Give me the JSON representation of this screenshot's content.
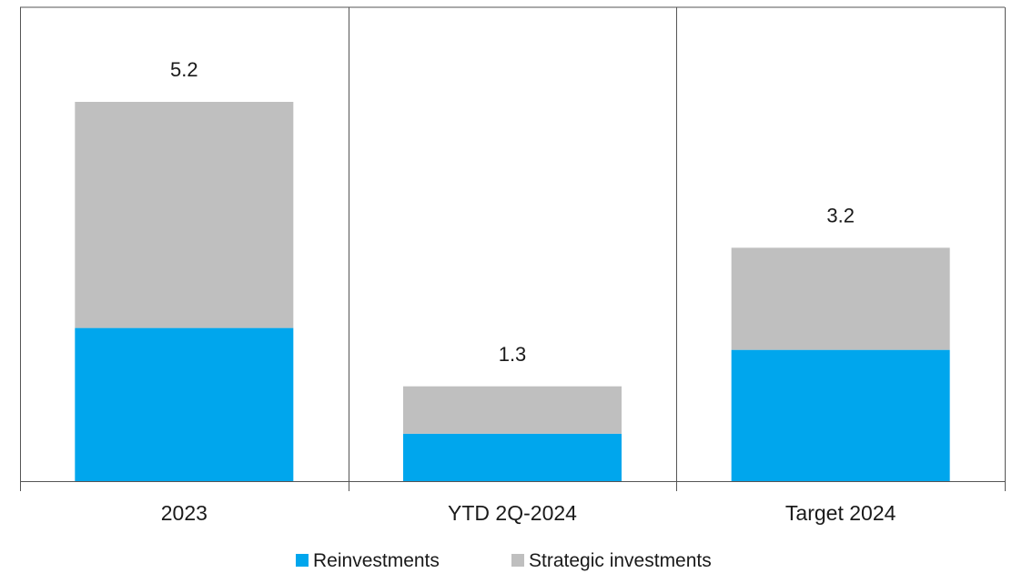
{
  "chart_data": {
    "type": "bar",
    "stacked": true,
    "categories": [
      "2023",
      "YTD 2Q-2024",
      "Target 2024"
    ],
    "series": [
      {
        "name": "Reinvestments",
        "values": [
          2.1,
          0.65,
          1.8
        ],
        "color": "#00a6ed"
      },
      {
        "name": "Strategic investments",
        "values": [
          3.1,
          0.65,
          1.4
        ],
        "color": "#bfbfbf"
      }
    ],
    "totals": [
      "5.2",
      "1.3",
      "3.2"
    ],
    "ylim": [
      0,
      6
    ],
    "legend_position": "bottom",
    "grid": false
  }
}
